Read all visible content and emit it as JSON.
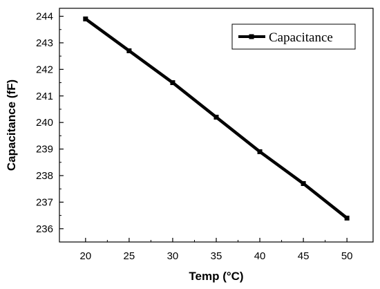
{
  "chart_data": {
    "type": "line",
    "title": "",
    "xlabel": "Temp (°C)",
    "ylabel": "Capacitance (fF)",
    "xlim": [
      17,
      53
    ],
    "ylim": [
      235.5,
      244.3
    ],
    "x_ticks": [
      20,
      25,
      30,
      35,
      40,
      45,
      50
    ],
    "y_ticks": [
      236,
      237,
      238,
      239,
      240,
      241,
      242,
      243,
      244
    ],
    "grid": false,
    "legend": "top-right",
    "series": [
      {
        "name": "Capacitance",
        "color": "#000000",
        "marker": "square",
        "x": [
          20,
          25,
          30,
          35,
          40,
          45,
          50
        ],
        "y": [
          243.9,
          242.7,
          241.5,
          240.2,
          238.9,
          237.7,
          236.4
        ]
      }
    ]
  }
}
